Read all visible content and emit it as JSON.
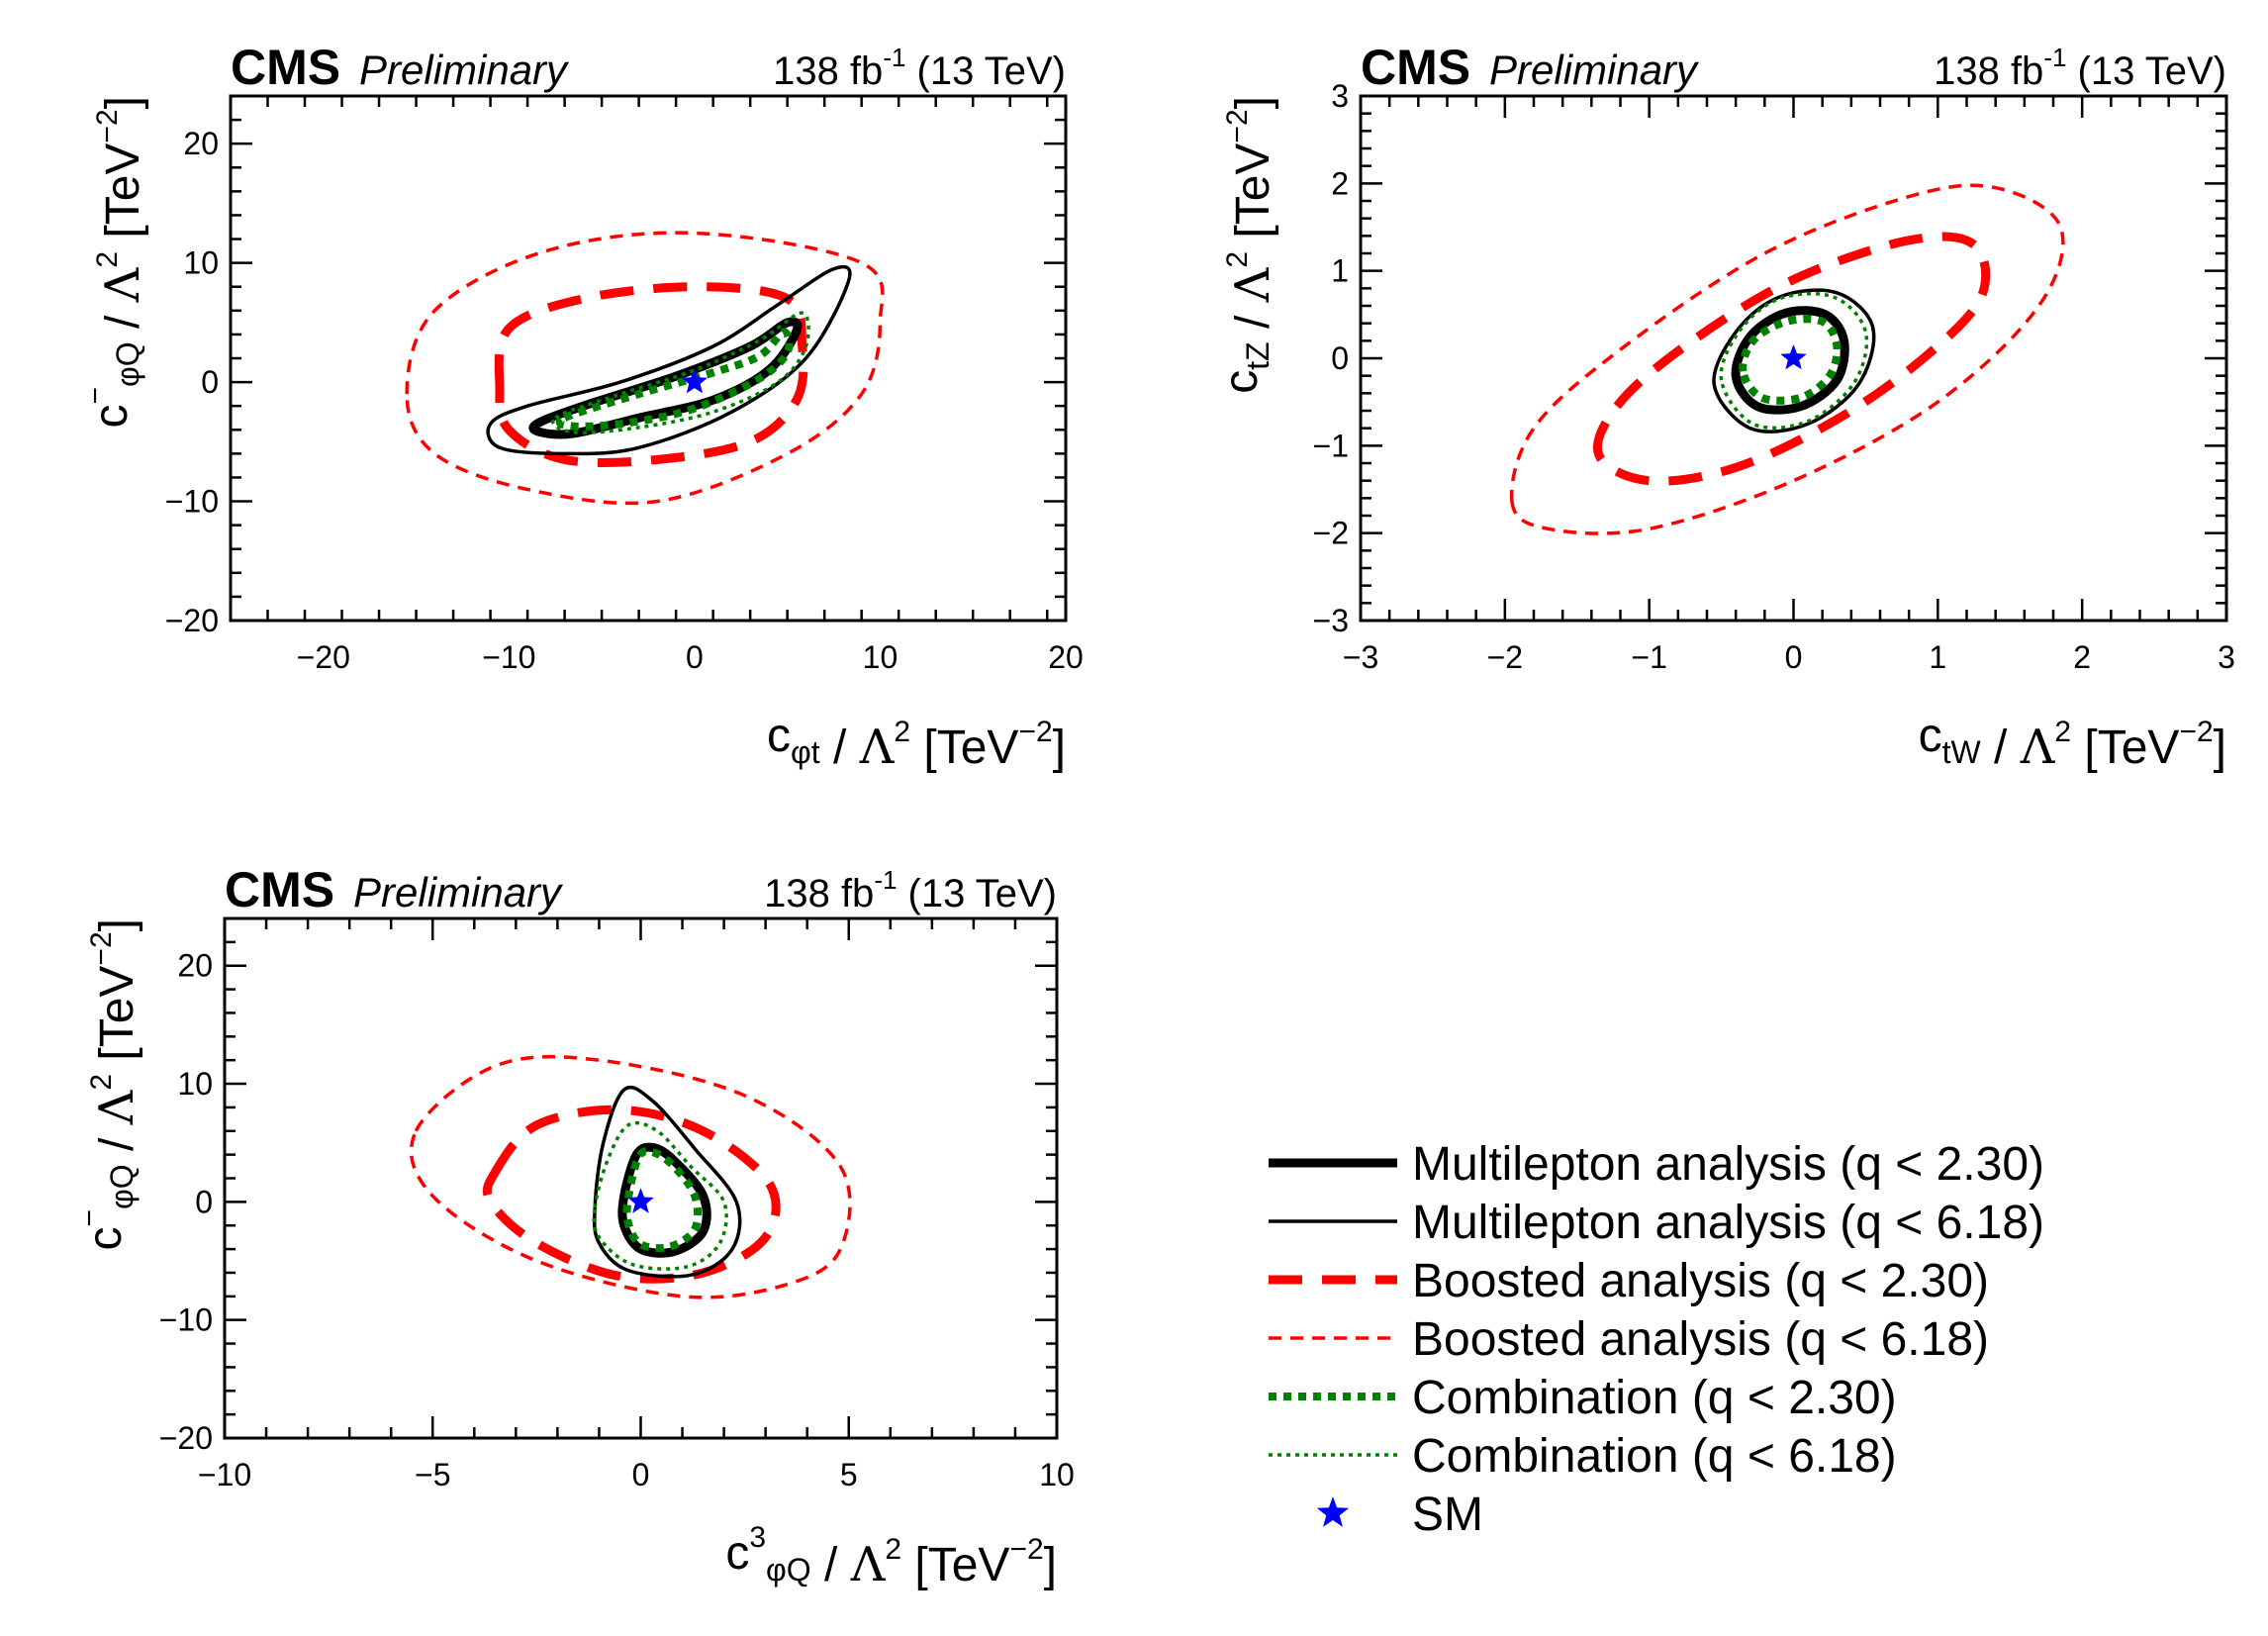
{
  "header": {
    "experiment": "CMS",
    "status": "Preliminary",
    "lumi_value": "138 fb",
    "lumi_exp": "-1",
    "energy": "(13 TeV)"
  },
  "styles": {
    "multilepton_color": "#000000",
    "boosted_color": "#ff0000",
    "combination_color": "#008000",
    "sm_color": "#0000ff"
  },
  "legend": {
    "items": [
      {
        "label": "Multilepton analysis (q < 2.30)",
        "style": "ml68"
      },
      {
        "label": "Multilepton analysis (q < 6.18)",
        "style": "ml95"
      },
      {
        "label": "Boosted analysis (q < 2.30)",
        "style": "bo68"
      },
      {
        "label": "Boosted analysis (q < 6.18)",
        "style": "bo95"
      },
      {
        "label": "Combination (q < 2.30)",
        "style": "co68"
      },
      {
        "label": "Combination (q < 6.18)",
        "style": "co95"
      },
      {
        "label": "SM",
        "style": "sm"
      }
    ]
  },
  "chart_data": [
    {
      "type": "contour",
      "xlabel": "c_{φt} / Λ² [TeV⁻²]",
      "ylabel": "c⁻_{φQ} / Λ² [TeV⁻²]",
      "xlim": [
        -25,
        20
      ],
      "ylim": [
        -20,
        24
      ],
      "xticks": [
        -20,
        -10,
        0,
        10,
        20
      ],
      "yticks": [
        -20,
        -10,
        0,
        10,
        20
      ],
      "sm_point": [
        0,
        0
      ],
      "contours": [
        {
          "style": "bo95",
          "points": [
            [
              -15.5,
              -1
            ],
            [
              -14,
              6
            ],
            [
              -8,
              11
            ],
            [
              0,
              12.5
            ],
            [
              9,
              10
            ],
            [
              10,
              5
            ],
            [
              9,
              -1
            ],
            [
              5,
              -6
            ],
            [
              -2,
              -10
            ],
            [
              -9,
              -9
            ],
            [
              -14,
              -6
            ]
          ]
        },
        {
          "style": "bo68",
          "points": [
            [
              -10.5,
              -0.5
            ],
            [
              -10,
              4.5
            ],
            [
              -6,
              7
            ],
            [
              0,
              8
            ],
            [
              5,
              7
            ],
            [
              5.8,
              3
            ],
            [
              5.5,
              -1.5
            ],
            [
              3,
              -5
            ],
            [
              -2,
              -6.5
            ],
            [
              -7,
              -6.5
            ],
            [
              -10,
              -4
            ]
          ]
        },
        {
          "style": "ml95",
          "points": [
            [
              -11,
              -3.5
            ],
            [
              -9,
              -2
            ],
            [
              -4,
              0
            ],
            [
              1,
              3
            ],
            [
              4.5,
              6.5
            ],
            [
              7.5,
              9.5
            ],
            [
              8.3,
              8.5
            ],
            [
              6,
              2
            ],
            [
              2,
              -2.5
            ],
            [
              -3,
              -5.5
            ],
            [
              -7,
              -6
            ],
            [
              -10.5,
              -5.5
            ]
          ]
        },
        {
          "style": "ml68",
          "points": [
            [
              -8.5,
              -3.5
            ],
            [
              -6,
              -2
            ],
            [
              -1,
              0.5
            ],
            [
              3,
              3
            ],
            [
              5,
              5
            ],
            [
              5.5,
              4.3
            ],
            [
              4,
              1
            ],
            [
              1,
              -1.5
            ],
            [
              -3,
              -3
            ],
            [
              -6.5,
              -4.3
            ],
            [
              -8.3,
              -4.2
            ]
          ]
        },
        {
          "style": "co95",
          "points": [
            [
              -7.5,
              -3
            ],
            [
              -4,
              -1
            ],
            [
              0,
              1
            ],
            [
              3.5,
              3.5
            ],
            [
              5.8,
              5.8
            ],
            [
              6,
              3
            ],
            [
              4.5,
              0
            ],
            [
              1,
              -2.5
            ],
            [
              -3,
              -3.8
            ],
            [
              -6.5,
              -4.2
            ]
          ]
        },
        {
          "style": "co68",
          "points": [
            [
              -7,
              -3
            ],
            [
              -3,
              -1
            ],
            [
              1,
              0.8
            ],
            [
              3.5,
              2.2
            ],
            [
              4.8,
              4.2
            ],
            [
              5,
              2.5
            ],
            [
              3.5,
              0.3
            ],
            [
              0,
              -2.2
            ],
            [
              -3.5,
              -3.4
            ],
            [
              -6.5,
              -3.7
            ]
          ]
        }
      ]
    },
    {
      "type": "contour",
      "xlabel": "c_{tW} / Λ² [TeV⁻²]",
      "ylabel": "c_{tZ} / Λ² [TeV⁻²]",
      "xlim": [
        -3,
        3
      ],
      "ylim": [
        -3,
        3
      ],
      "xticks": [
        -3,
        -2,
        -1,
        0,
        1,
        2,
        3
      ],
      "yticks": [
        -3,
        -2,
        -1,
        0,
        1,
        2,
        3
      ],
      "sm_point": [
        0,
        0
      ],
      "contours": [
        {
          "style": "bo95",
          "points": [
            [
              -1.95,
              -1.65
            ],
            [
              -1.8,
              -0.8
            ],
            [
              -1.2,
              0.1
            ],
            [
              -0.2,
              1.2
            ],
            [
              0.8,
              1.85
            ],
            [
              1.4,
              1.95
            ],
            [
              1.85,
              1.5
            ],
            [
              1.7,
              0.6
            ],
            [
              1.0,
              -0.5
            ],
            [
              0,
              -1.4
            ],
            [
              -1.0,
              -1.95
            ],
            [
              -1.7,
              -1.95
            ]
          ]
        },
        {
          "style": "bo68",
          "points": [
            [
              -1.35,
              -1.1
            ],
            [
              -1.2,
              -0.5
            ],
            [
              -0.7,
              0.2
            ],
            [
              0,
              0.9
            ],
            [
              0.8,
              1.35
            ],
            [
              1.25,
              1.3
            ],
            [
              1.3,
              0.7
            ],
            [
              0.9,
              0
            ],
            [
              0.3,
              -0.7
            ],
            [
              -0.4,
              -1.25
            ],
            [
              -1.0,
              -1.4
            ]
          ]
        },
        {
          "style": "ml95",
          "points": [
            [
              -0.55,
              -0.3
            ],
            [
              -0.4,
              0.3
            ],
            [
              -0.1,
              0.7
            ],
            [
              0.3,
              0.75
            ],
            [
              0.55,
              0.35
            ],
            [
              0.45,
              -0.3
            ],
            [
              0.1,
              -0.75
            ],
            [
              -0.3,
              -0.8
            ]
          ]
        },
        {
          "style": "ml68",
          "points": [
            [
              -0.4,
              -0.2
            ],
            [
              -0.3,
              0.25
            ],
            [
              -0.05,
              0.52
            ],
            [
              0.22,
              0.5
            ],
            [
              0.35,
              0.2
            ],
            [
              0.3,
              -0.25
            ],
            [
              0.05,
              -0.55
            ],
            [
              -0.25,
              -0.55
            ]
          ]
        },
        {
          "style": "co95",
          "points": [
            [
              -0.5,
              -0.25
            ],
            [
              -0.38,
              0.3
            ],
            [
              -0.1,
              0.68
            ],
            [
              0.28,
              0.7
            ],
            [
              0.5,
              0.3
            ],
            [
              0.42,
              -0.28
            ],
            [
              0.1,
              -0.72
            ],
            [
              -0.28,
              -0.75
            ]
          ]
        },
        {
          "style": "co68",
          "points": [
            [
              -0.35,
              -0.15
            ],
            [
              -0.28,
              0.2
            ],
            [
              -0.05,
              0.42
            ],
            [
              0.2,
              0.42
            ],
            [
              0.3,
              0.15
            ],
            [
              0.25,
              -0.2
            ],
            [
              0.05,
              -0.45
            ],
            [
              -0.22,
              -0.45
            ]
          ]
        }
      ]
    },
    {
      "type": "contour",
      "xlabel": "c³_{φQ} / Λ² [TeV⁻²]",
      "ylabel": "c⁻_{φQ} / Λ² [TeV⁻²]",
      "xlim": [
        -10,
        10
      ],
      "ylim": [
        -20,
        24
      ],
      "xticks": [
        -10,
        -5,
        0,
        5,
        10
      ],
      "yticks": [
        -20,
        -10,
        0,
        10,
        20
      ],
      "sm_point": [
        0,
        0
      ],
      "contours": [
        {
          "style": "bo95",
          "points": [
            [
              -5.4,
              6
            ],
            [
              -3.5,
              11.5
            ],
            [
              -1,
              12
            ],
            [
              2.5,
              9
            ],
            [
              4.8,
              3
            ],
            [
              4.8,
              -4
            ],
            [
              3.5,
              -7
            ],
            [
              1,
              -8
            ],
            [
              -2.5,
              -5
            ],
            [
              -5,
              0.5
            ]
          ]
        },
        {
          "style": "bo68",
          "points": [
            [
              -3.5,
              2.5
            ],
            [
              -2.5,
              6.5
            ],
            [
              -0.5,
              7.8
            ],
            [
              1.5,
              6
            ],
            [
              3.1,
              1.5
            ],
            [
              3,
              -3
            ],
            [
              1.5,
              -6
            ],
            [
              -0.5,
              -6.3
            ],
            [
              -2.5,
              -3.5
            ],
            [
              -3.6,
              0
            ]
          ]
        },
        {
          "style": "ml95",
          "points": [
            [
              -1.1,
              -0.5
            ],
            [
              -0.9,
              5
            ],
            [
              -0.4,
              9.5
            ],
            [
              0.3,
              8.5
            ],
            [
              1.3,
              4.5
            ],
            [
              2.3,
              0
            ],
            [
              2.2,
              -4
            ],
            [
              1.2,
              -6.2
            ],
            [
              -0.3,
              -5.8
            ],
            [
              -1,
              -3.5
            ]
          ]
        },
        {
          "style": "ml68",
          "points": [
            [
              -0.4,
              0.5
            ],
            [
              -0.1,
              4
            ],
            [
              0.3,
              4.6
            ],
            [
              0.8,
              3.5
            ],
            [
              1.5,
              0.5
            ],
            [
              1.5,
              -2.5
            ],
            [
              0.8,
              -4.2
            ],
            [
              0,
              -4
            ],
            [
              -0.4,
              -2
            ]
          ]
        },
        {
          "style": "co95",
          "points": [
            [
              -1.1,
              -0.5
            ],
            [
              -0.8,
              3.5
            ],
            [
              -0.3,
              6.5
            ],
            [
              0.4,
              6
            ],
            [
              1.2,
              3
            ],
            [
              2,
              0
            ],
            [
              1.9,
              -3.5
            ],
            [
              1.1,
              -5.5
            ],
            [
              -0.2,
              -5.3
            ],
            [
              -1,
              -3
            ]
          ]
        },
        {
          "style": "co68",
          "points": [
            [
              -0.3,
              0.3
            ],
            [
              -0.05,
              3.8
            ],
            [
              0.3,
              4.2
            ],
            [
              0.8,
              3
            ],
            [
              1.3,
              0.5
            ],
            [
              1.3,
              -2.3
            ],
            [
              0.7,
              -3.8
            ],
            [
              0,
              -3.6
            ],
            [
              -0.3,
              -1.8
            ]
          ]
        }
      ]
    }
  ]
}
